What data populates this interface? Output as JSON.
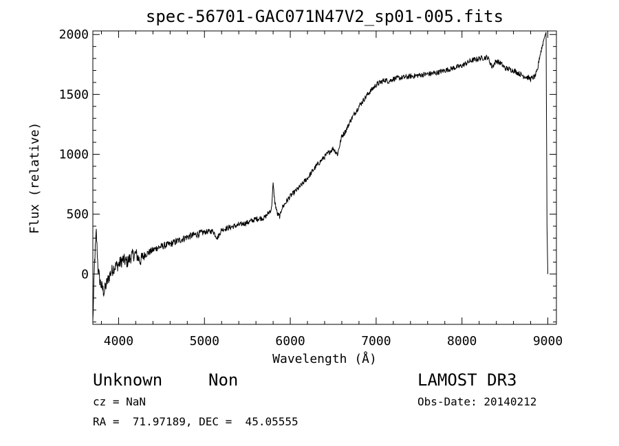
{
  "chart_data": {
    "type": "line",
    "title": "spec-56701-GAC071N47V2_sp01-005.fits",
    "xlabel": "Wavelength (Å)",
    "ylabel": "Flux (relative)",
    "xlim": [
      3700,
      9100
    ],
    "ylim": [
      -420,
      2030
    ],
    "xticks": [
      4000,
      5000,
      6000,
      7000,
      8000,
      9000
    ],
    "xtick_labels": [
      "4000",
      "5000",
      "6000",
      "7000",
      "8000",
      "9000"
    ],
    "yticks": [
      0,
      500,
      1000,
      1500,
      2000
    ],
    "ytick_labels": [
      "0",
      "500",
      "1000",
      "1500",
      "2000"
    ],
    "grid": false,
    "series": [
      {
        "x": [
          3700,
          3720,
          3740,
          3760,
          3780,
          3800,
          3830,
          3860,
          3900,
          3950,
          4000,
          4050,
          4100,
          4150,
          4200,
          4250,
          4300,
          4350,
          4400,
          4450,
          4500,
          4600,
          4700,
          4800,
          4900,
          5000,
          5100,
          5150,
          5200,
          5300,
          5400,
          5500,
          5600,
          5700,
          5780,
          5800,
          5820,
          5850,
          5880,
          5900,
          5950,
          6000,
          6100,
          6200,
          6300,
          6400,
          6500,
          6550,
          6600,
          6650,
          6700,
          6800,
          6900,
          7000,
          7050,
          7100,
          7150,
          7200,
          7300,
          7400,
          7500,
          7600,
          7700,
          7800,
          7900,
          8000,
          8100,
          8200,
          8300,
          8350,
          8400,
          8450,
          8500,
          8600,
          8700,
          8800,
          8850,
          8880,
          8900,
          8950,
          8980,
          8990,
          9000
        ],
        "y": [
          -400,
          100,
          350,
          50,
          -50,
          -100,
          -150,
          -80,
          0,
          60,
          80,
          120,
          100,
          150,
          170,
          110,
          160,
          180,
          200,
          220,
          230,
          250,
          280,
          310,
          330,
          350,
          360,
          300,
          370,
          390,
          410,
          430,
          460,
          470,
          540,
          750,
          600,
          500,
          480,
          550,
          600,
          650,
          720,
          800,
          900,
          980,
          1050,
          1000,
          1150,
          1200,
          1280,
          1400,
          1500,
          1580,
          1600,
          1620,
          1610,
          1630,
          1640,
          1650,
          1660,
          1670,
          1680,
          1700,
          1720,
          1740,
          1780,
          1800,
          1810,
          1730,
          1780,
          1760,
          1720,
          1700,
          1660,
          1630,
          1650,
          1700,
          1800,
          1950,
          2020,
          400,
          0
        ]
      }
    ]
  },
  "info": {
    "object_class": "Unknown",
    "object_subclass": "Non",
    "survey": "LAMOST DR3",
    "redshift": "cz = NaN",
    "obs_date": "Obs-Date: 20140212",
    "coords": "RA =  71.97189, DEC =  45.05555"
  }
}
